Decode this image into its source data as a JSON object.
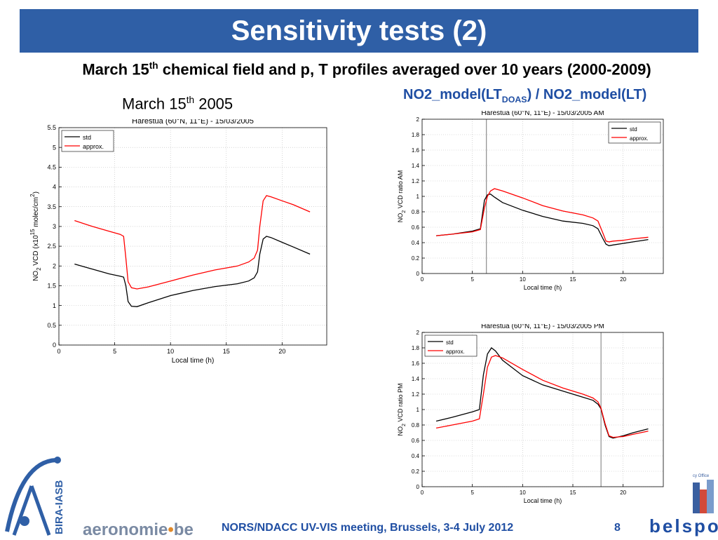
{
  "slide": {
    "title": "Sensitivity tests (2)",
    "subtitle_main": "March 15",
    "subtitle_sup": "th",
    "subtitle_rest": " chemical field and p, T profiles averaged over 10 years (2000-2009)",
    "left_caption_main": "March 15",
    "left_caption_sup": "th",
    "left_caption_rest": " 2005",
    "right_caption_a": "NO2_model(LT",
    "right_caption_sub": "DOAS",
    "right_caption_b": ") / NO2_model(LT)",
    "footer": "NORS/NDACC UV-VIS meeting, Brussels, 3-4 July 2012",
    "page_number": "8",
    "logo_aeronomie_a": "aeronomie",
    "logo_aeronomie_dot": "•",
    "logo_aeronomie_b": "be",
    "logo_bira": "BIRA-IASB",
    "logo_belspo": "belspo",
    "logo_belspo_small": "cy Office",
    "colors": {
      "title_bg": "#2f5fa6",
      "accent_blue": "#1f4ea3",
      "std": "#000000",
      "approx": "#ff0000"
    }
  },
  "chart_data": [
    {
      "type": "line",
      "title": "Harestua (60°N, 11°E) - 15/03/2005",
      "xlabel": "Local time (h)",
      "ylabel_parts": [
        "NO",
        "2",
        " VCD (x10",
        "15",
        " molec/cm",
        "2",
        ")"
      ],
      "xlim": [
        0,
        24
      ],
      "ylim": [
        0,
        5.5
      ],
      "xticks": [
        0,
        5,
        10,
        15,
        20
      ],
      "yticks": [
        0,
        0.5,
        1,
        1.5,
        2,
        2.5,
        3,
        3.5,
        4,
        4.5,
        5,
        5.5
      ],
      "ytick_labels": [
        "0",
        "0.5",
        "1",
        "1.5",
        "2",
        "2.5",
        "3",
        "3.5",
        "4",
        "4.5",
        "5",
        "5.5"
      ],
      "grid": true,
      "legend": "top-left",
      "vline": null,
      "series": [
        {
          "name": "std",
          "color": "#000000",
          "x": [
            1.4,
            3,
            4.5,
            5.5,
            5.8,
            6.0,
            6.2,
            6.5,
            7,
            8,
            10,
            12,
            14,
            16,
            17,
            17.5,
            17.8,
            18.0,
            18.3,
            18.6,
            19,
            20,
            21,
            22.5
          ],
          "y": [
            2.05,
            1.92,
            1.8,
            1.74,
            1.72,
            1.5,
            1.1,
            0.98,
            0.97,
            1.07,
            1.25,
            1.38,
            1.48,
            1.55,
            1.62,
            1.7,
            1.85,
            2.3,
            2.68,
            2.75,
            2.72,
            2.6,
            2.48,
            2.3
          ]
        },
        {
          "name": "approx.",
          "color": "#ff0000",
          "x": [
            1.4,
            3,
            4.5,
            5.5,
            5.8,
            6.0,
            6.2,
            6.5,
            7,
            8,
            10,
            12,
            14,
            16,
            17,
            17.5,
            17.8,
            18.0,
            18.3,
            18.6,
            19,
            20,
            21,
            22.5
          ],
          "y": [
            3.15,
            3.0,
            2.88,
            2.8,
            2.75,
            2.2,
            1.6,
            1.45,
            1.42,
            1.47,
            1.62,
            1.77,
            1.9,
            2.0,
            2.1,
            2.2,
            2.4,
            3.0,
            3.65,
            3.78,
            3.75,
            3.65,
            3.55,
            3.37
          ]
        }
      ]
    },
    {
      "type": "line",
      "title": "Harestua (60°N, 11°E) - 15/03/2005 AM",
      "xlabel": "Local time (h)",
      "ylabel_parts": [
        "NO",
        "2",
        " VCD ratio AM"
      ],
      "xlim": [
        0,
        24
      ],
      "ylim": [
        0,
        2
      ],
      "xticks": [
        0,
        5,
        10,
        15,
        20
      ],
      "yticks": [
        0,
        0.2,
        0.4,
        0.6,
        0.8,
        1,
        1.2,
        1.4,
        1.6,
        1.8,
        2
      ],
      "ytick_labels": [
        "0",
        "0.2",
        "0.4",
        "0.6",
        "0.8",
        "1",
        "1.2",
        "1.4",
        "1.6",
        "1.8",
        "2"
      ],
      "grid": true,
      "legend": "top-right",
      "vline": 6.4,
      "series": [
        {
          "name": "std",
          "color": "#000000",
          "x": [
            1.4,
            3,
            5,
            5.8,
            6.2,
            6.5,
            6.8,
            7.2,
            8,
            10,
            12,
            14,
            16,
            17,
            17.5,
            18.0,
            18.3,
            18.6,
            19,
            20,
            21,
            22.5
          ],
          "y": [
            0.49,
            0.51,
            0.55,
            0.58,
            0.95,
            1.02,
            1.03,
            0.99,
            0.92,
            0.82,
            0.74,
            0.68,
            0.65,
            0.62,
            0.58,
            0.45,
            0.38,
            0.36,
            0.37,
            0.39,
            0.41,
            0.44
          ]
        },
        {
          "name": "approx.",
          "color": "#ff0000",
          "x": [
            1.4,
            3,
            5,
            5.8,
            6.2,
            6.5,
            6.8,
            7.2,
            8,
            10,
            12,
            14,
            16,
            17,
            17.5,
            18.0,
            18.3,
            18.6,
            19,
            20,
            21,
            22.5
          ],
          "y": [
            0.49,
            0.51,
            0.54,
            0.57,
            0.85,
            1.0,
            1.07,
            1.1,
            1.07,
            0.98,
            0.88,
            0.81,
            0.76,
            0.72,
            0.68,
            0.52,
            0.42,
            0.41,
            0.42,
            0.43,
            0.45,
            0.47
          ]
        }
      ]
    },
    {
      "type": "line",
      "title": "Harestua (60°N, 11°E) - 15/03/2005 PM",
      "xlabel": "Local time (h)",
      "ylabel_parts": [
        "NO",
        "2",
        " VCD ratio PM"
      ],
      "xlim": [
        0,
        24
      ],
      "ylim": [
        0,
        2
      ],
      "xticks": [
        0,
        5,
        10,
        15,
        20
      ],
      "yticks": [
        0,
        0.2,
        0.4,
        0.6,
        0.8,
        1,
        1.2,
        1.4,
        1.6,
        1.8,
        2
      ],
      "ytick_labels": [
        "0",
        "0.2",
        "0.4",
        "0.6",
        "0.8",
        "1",
        "1.2",
        "1.4",
        "1.6",
        "1.8",
        "2"
      ],
      "grid": true,
      "legend": "top-left",
      "vline": 17.8,
      "series": [
        {
          "name": "std",
          "color": "#000000",
          "x": [
            1.4,
            3,
            5,
            5.7,
            6.1,
            6.5,
            6.9,
            7.3,
            8,
            10,
            12,
            14,
            16,
            17,
            17.5,
            17.8,
            18.2,
            18.6,
            19,
            20,
            21,
            22.5
          ],
          "y": [
            0.85,
            0.9,
            0.97,
            1.0,
            1.45,
            1.72,
            1.8,
            1.76,
            1.64,
            1.44,
            1.32,
            1.24,
            1.16,
            1.12,
            1.07,
            1.01,
            0.8,
            0.65,
            0.63,
            0.66,
            0.7,
            0.75
          ]
        },
        {
          "name": "approx.",
          "color": "#ff0000",
          "x": [
            1.4,
            3,
            5,
            5.7,
            6.1,
            6.5,
            6.9,
            7.3,
            8,
            10,
            12,
            14,
            16,
            17,
            17.5,
            17.8,
            18.2,
            18.6,
            19,
            20,
            21,
            22.5
          ],
          "y": [
            0.76,
            0.8,
            0.85,
            0.88,
            1.2,
            1.55,
            1.68,
            1.7,
            1.67,
            1.52,
            1.38,
            1.28,
            1.2,
            1.15,
            1.1,
            1.02,
            0.82,
            0.66,
            0.64,
            0.65,
            0.68,
            0.72
          ]
        }
      ]
    }
  ]
}
